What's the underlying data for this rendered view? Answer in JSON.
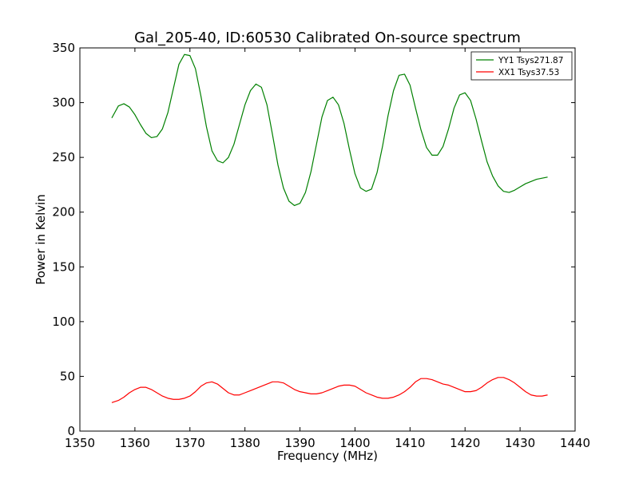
{
  "chart_data": {
    "type": "line",
    "title": "Gal_205-40, ID:60530 Calibrated On-source spectrum",
    "xlabel": "Frequency (MHz)",
    "ylabel": "Power in Kelvin",
    "xlim": [
      1350,
      1440
    ],
    "ylim": [
      0,
      350
    ],
    "xticks": [
      1350,
      1360,
      1370,
      1380,
      1390,
      1400,
      1410,
      1420,
      1430,
      1440
    ],
    "yticks": [
      0,
      50,
      100,
      150,
      200,
      250,
      300,
      350
    ],
    "grid": false,
    "legend": {
      "placement": "top-right"
    },
    "series": [
      {
        "name": "YY1 Tsys271.87",
        "color": "#008000",
        "x": [
          1355.8,
          1357.0,
          1358.0,
          1359.0,
          1360.0,
          1361.0,
          1362.0,
          1363.0,
          1364.0,
          1365.0,
          1366.0,
          1367.0,
          1368.0,
          1369.0,
          1370.0,
          1371.0,
          1372.0,
          1373.0,
          1374.0,
          1375.0,
          1376.0,
          1377.0,
          1378.0,
          1379.0,
          1380.0,
          1381.0,
          1382.0,
          1383.0,
          1384.0,
          1385.0,
          1386.0,
          1387.0,
          1388.0,
          1389.0,
          1390.0,
          1391.0,
          1392.0,
          1393.0,
          1394.0,
          1395.0,
          1396.0,
          1397.0,
          1398.0,
          1399.0,
          1400.0,
          1401.0,
          1402.0,
          1403.0,
          1404.0,
          1405.0,
          1406.0,
          1407.0,
          1408.0,
          1409.0,
          1410.0,
          1411.0,
          1412.0,
          1413.0,
          1414.0,
          1415.0,
          1416.0,
          1417.0,
          1418.0,
          1419.0,
          1420.0,
          1421.0,
          1422.0,
          1423.0,
          1424.0,
          1425.0,
          1426.0,
          1427.0,
          1428.0,
          1429.0,
          1430.0,
          1431.0,
          1432.0,
          1433.0,
          1434.0,
          1435.0
        ],
        "values": [
          286,
          297,
          299,
          296,
          289,
          280,
          272,
          268,
          269,
          276,
          291,
          313,
          335,
          344,
          343,
          331,
          306,
          278,
          256,
          247,
          245,
          250,
          262,
          280,
          298,
          311,
          317,
          314,
          298,
          271,
          243,
          222,
          210,
          206,
          208,
          218,
          237,
          262,
          287,
          302,
          305,
          298,
          281,
          257,
          235,
          222,
          219,
          221,
          236,
          260,
          288,
          311,
          325,
          326,
          316,
          295,
          275,
          259,
          252,
          252,
          260,
          276,
          295,
          307,
          309,
          302,
          285,
          265,
          246,
          233,
          224,
          219,
          218,
          220,
          223,
          226,
          228,
          230,
          231,
          232
        ]
      },
      {
        "name": "XX1 Tsys37.53",
        "color": "#ff0000",
        "x": [
          1355.8,
          1357.0,
          1358.0,
          1359.0,
          1360.0,
          1361.0,
          1362.0,
          1363.0,
          1364.0,
          1365.0,
          1366.0,
          1367.0,
          1368.0,
          1369.0,
          1370.0,
          1371.0,
          1372.0,
          1373.0,
          1374.0,
          1375.0,
          1376.0,
          1377.0,
          1378.0,
          1379.0,
          1380.0,
          1381.0,
          1382.0,
          1383.0,
          1384.0,
          1385.0,
          1386.0,
          1387.0,
          1388.0,
          1389.0,
          1390.0,
          1391.0,
          1392.0,
          1393.0,
          1394.0,
          1395.0,
          1396.0,
          1397.0,
          1398.0,
          1399.0,
          1400.0,
          1401.0,
          1402.0,
          1403.0,
          1404.0,
          1405.0,
          1406.0,
          1407.0,
          1408.0,
          1409.0,
          1410.0,
          1411.0,
          1412.0,
          1413.0,
          1414.0,
          1415.0,
          1416.0,
          1417.0,
          1418.0,
          1419.0,
          1420.0,
          1421.0,
          1422.0,
          1423.0,
          1424.0,
          1425.0,
          1426.0,
          1427.0,
          1428.0,
          1429.0,
          1430.0,
          1431.0,
          1432.0,
          1433.0,
          1434.0,
          1435.0
        ],
        "values": [
          26,
          28,
          31,
          35,
          38,
          40,
          40,
          38,
          35,
          32,
          30,
          29,
          29,
          30,
          32,
          36,
          41,
          44,
          45,
          43,
          39,
          35,
          33,
          33,
          35,
          37,
          39,
          41,
          43,
          45,
          45,
          44,
          41,
          38,
          36,
          35,
          34,
          34,
          35,
          37,
          39,
          41,
          42,
          42,
          41,
          38,
          35,
          33,
          31,
          30,
          30,
          31,
          33,
          36,
          40,
          45,
          48,
          48,
          47,
          45,
          43,
          42,
          40,
          38,
          36,
          36,
          37,
          40,
          44,
          47,
          49,
          49,
          47,
          44,
          40,
          36,
          33,
          32,
          32,
          33
        ]
      }
    ]
  }
}
